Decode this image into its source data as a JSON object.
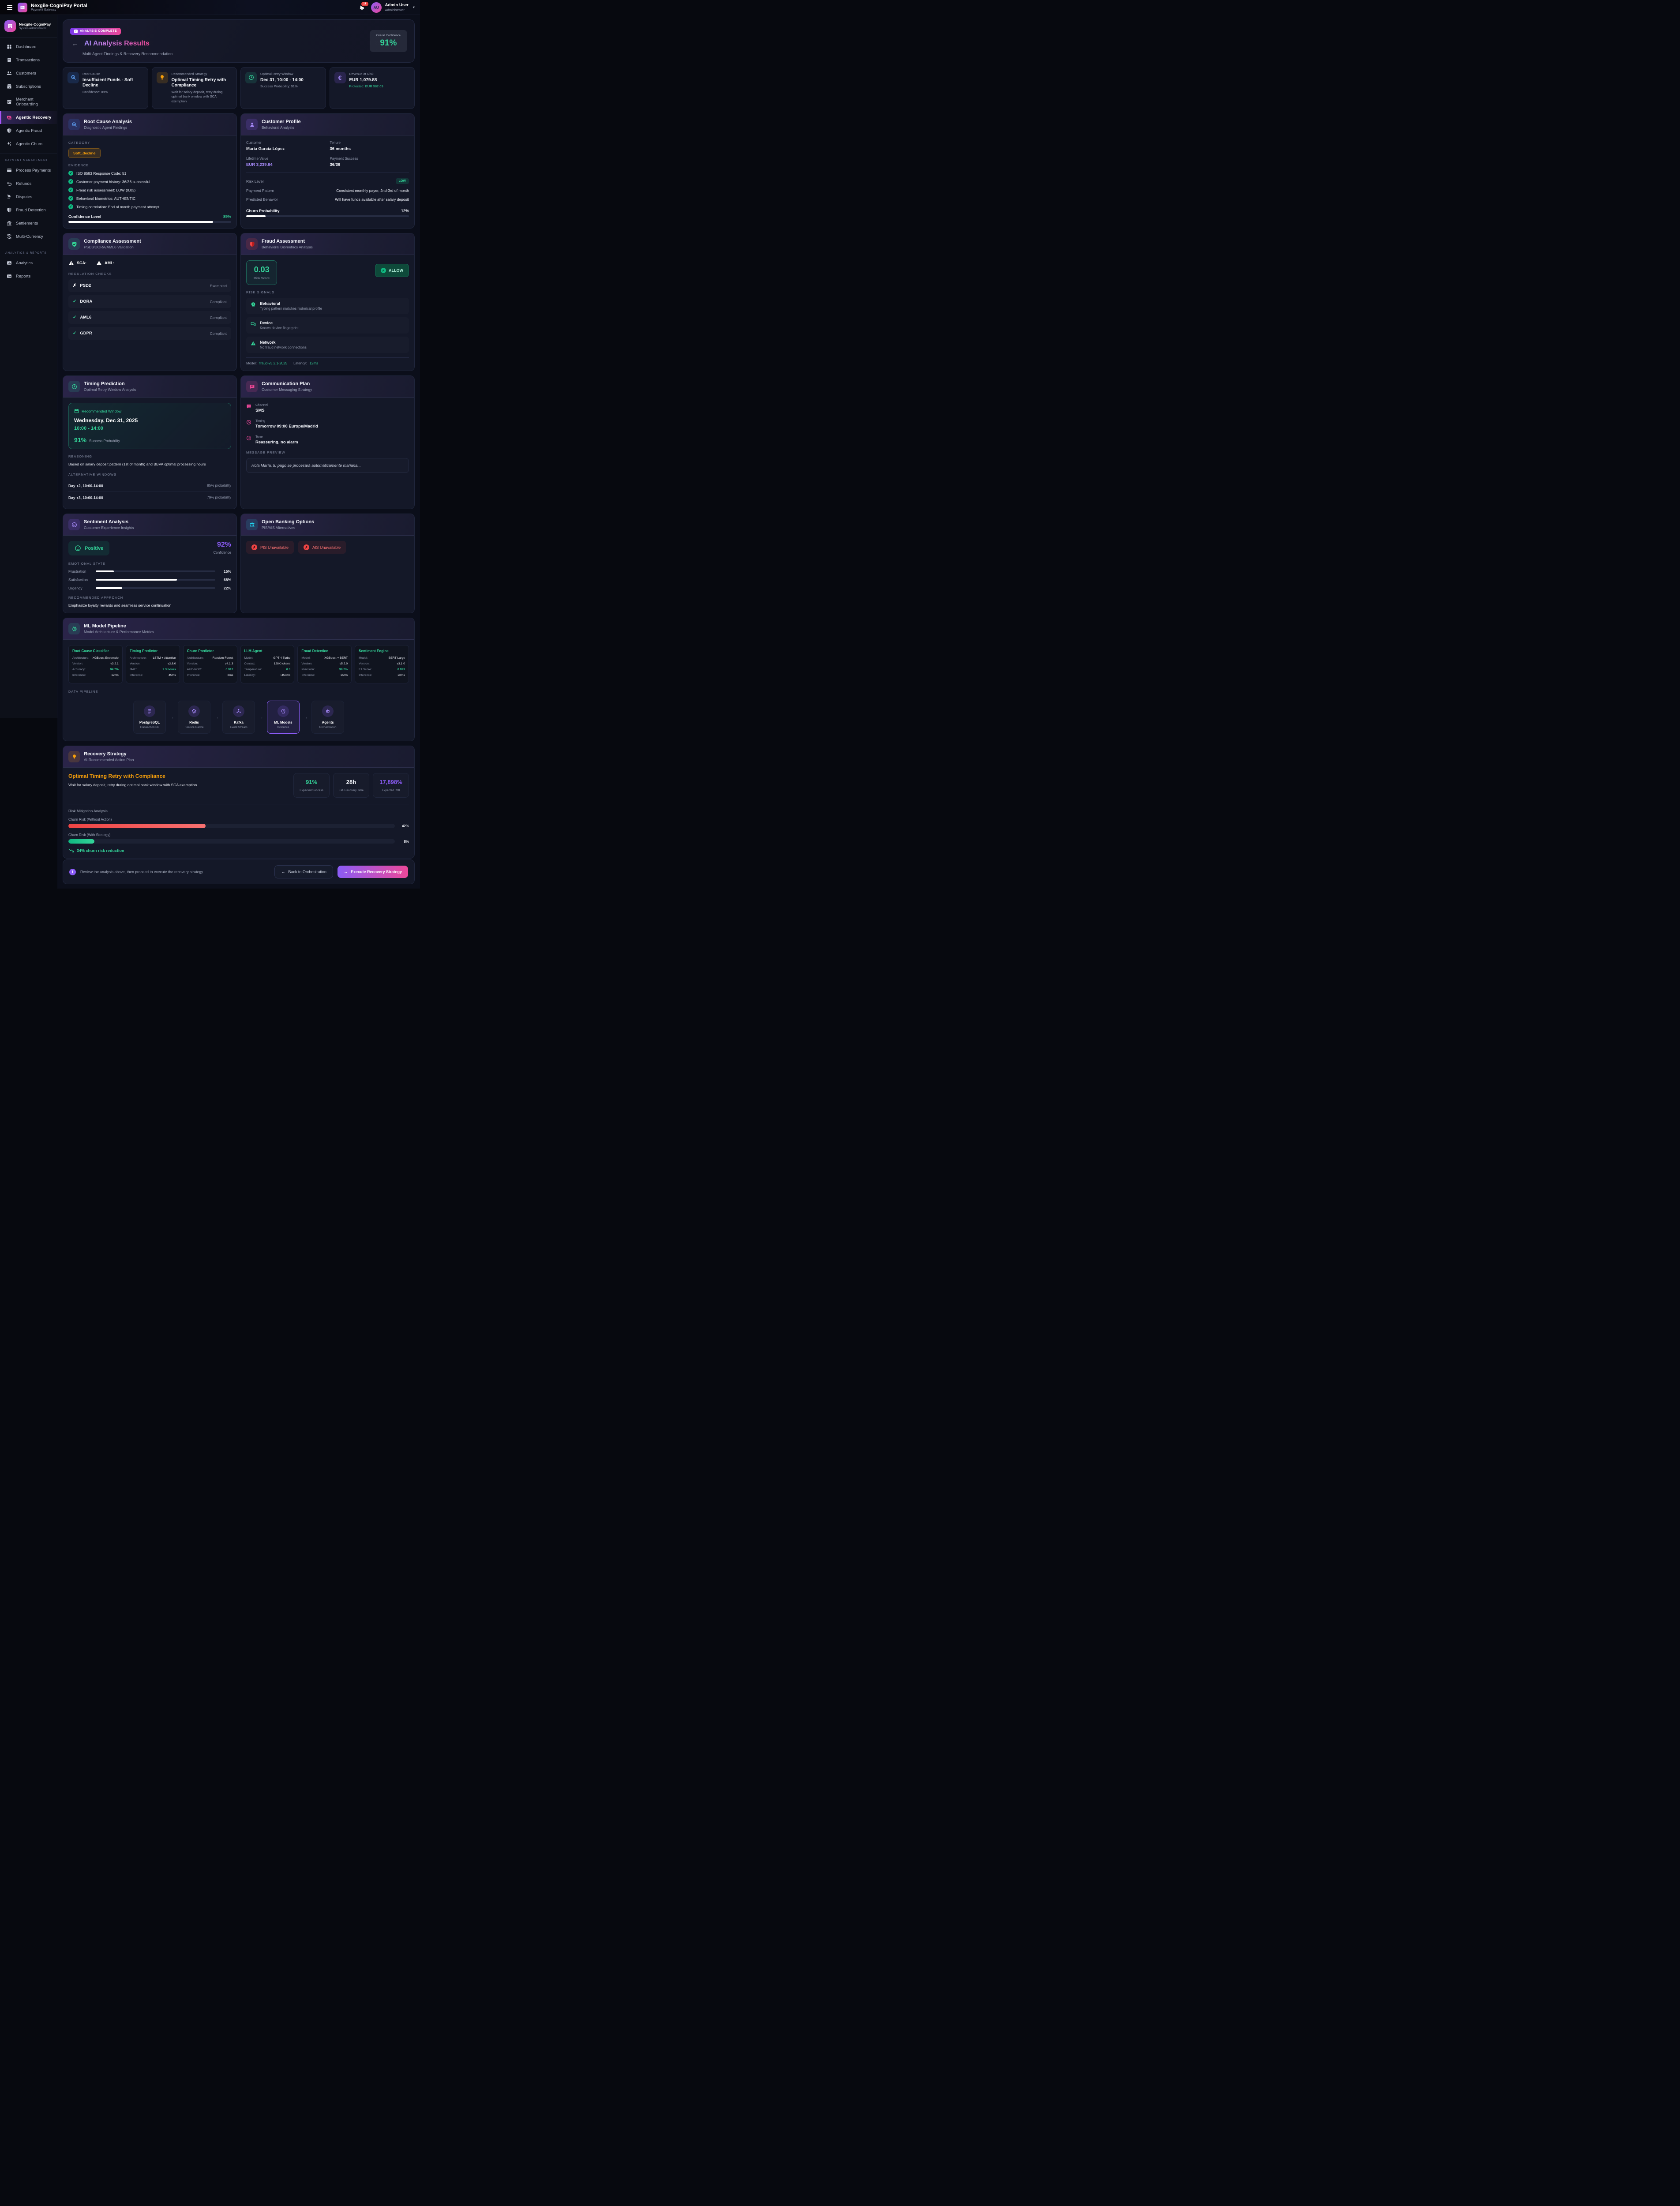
{
  "colors": {
    "accent_purple": "#8b5cf6",
    "accent_pink": "#ec4899",
    "success_green": "#34d399",
    "warning_amber": "#f59e0b",
    "danger_red": "#f87171",
    "info_blue": "#60a5fa",
    "cyan": "#22d3ee"
  },
  "app": {
    "title": "Nexgile-CogniPay Portal",
    "subtitle": "Payment Gateway",
    "notifications_count": "11",
    "user_initials": "AU",
    "user_name": "Admin User",
    "user_role": "Administrator",
    "caret": "▾"
  },
  "sidebar": {
    "brand_name": "Nexgile-CogniPay",
    "brand_role": "System Administrator",
    "main_items": [
      {
        "label": "Dashboard"
      },
      {
        "label": "Transactions"
      },
      {
        "label": "Customers"
      },
      {
        "label": "Subscriptions"
      },
      {
        "label": "Merchant Onboarding"
      },
      {
        "label": "Agentic Recovery"
      },
      {
        "label": "Agentic Fraud"
      },
      {
        "label": "Agentic Churn"
      }
    ],
    "sections": [
      {
        "title": "PAYMENT MANAGEMENT",
        "items": [
          "Process Payments",
          "Refunds",
          "Disputes",
          "Fraud Detection",
          "Settlements",
          "Multi-Currency"
        ]
      },
      {
        "title": "ANALYTICS & REPORTS",
        "items": [
          "Analytics",
          "Reports"
        ]
      }
    ]
  },
  "hero": {
    "badge": "ANALYSIS COMPLETE",
    "title": "AI Analysis Results",
    "subtitle": "Multi-Agent Findings & Recovery Recommendation",
    "confidence_label": "Overall Confidence",
    "confidence_value": "91%"
  },
  "summary_cards": [
    {
      "label": "Root Cause",
      "value": "Insufficient Funds - Soft Decline",
      "sub": "Confidence: 89%"
    },
    {
      "label": "Recommended Strategy",
      "value": "Optimal Timing Retry with Compliance",
      "sub": "Wait for salary deposit, retry during optimal bank window with SCA exemption"
    },
    {
      "label": "Optimal Retry Window",
      "value": "Dec 31, 10:00 - 14:00",
      "sub": "Success Probability: 91%"
    },
    {
      "label": "Revenue at Risk",
      "value": "EUR 1,079.88",
      "sub": "Protected: EUR 982.69"
    }
  ],
  "root_cause": {
    "title": "Root Cause Analysis",
    "subtitle": "Diagnostic Agent Findings",
    "category_label": "CATEGORY",
    "category": "Soft_decline",
    "evidence_label": "EVIDENCE",
    "evidence": [
      "ISO 8583 Response Code: 51",
      "Customer payment history: 36/36 successful",
      "Fraud risk assessment: LOW (0.03)",
      "Behavioral biometrics: AUTHENTIC",
      "Timing correlation: End of month payment attempt"
    ],
    "confidence_label": "Confidence Level",
    "confidence": "89%",
    "confidence_pct": 89
  },
  "customer_profile": {
    "title": "Customer Profile",
    "subtitle": "Behavioral Analysis",
    "fields": [
      {
        "label": "Customer",
        "value": "María García López"
      },
      {
        "label": "Tenure",
        "value": "36 months"
      },
      {
        "label": "Lifetime Value",
        "value": "EUR 3,239.64"
      },
      {
        "label": "Payment Success",
        "value": "36/36"
      }
    ],
    "risk_level_label": "Risk Level",
    "risk_level": "LOW",
    "payment_pattern_label": "Payment Pattern",
    "payment_pattern": "Consistent monthly payer, 2nd-3rd of month",
    "predicted_behavior_label": "Predicted Behavior",
    "predicted_behavior": "Will have funds available after salary deposit",
    "churn_label": "Churn Probability",
    "churn": "12%",
    "churn_pct": 12
  },
  "compliance": {
    "title": "Compliance Assessment",
    "subtitle": "PSD3/DORA/AML6 Validation",
    "sca_label": "SCA:",
    "aml_label": "AML:",
    "checks_label": "REGULATION CHECKS",
    "checks": [
      {
        "name": "PSD2",
        "status": "Exempted"
      },
      {
        "name": "DORA",
        "status": "Compliant"
      },
      {
        "name": "AML6",
        "status": "Compliant"
      },
      {
        "name": "GDPR",
        "status": "Compliant"
      }
    ]
  },
  "fraud": {
    "title": "Fraud Assessment",
    "subtitle": "Behavioral Biometrics Analysis",
    "risk_score": "0.03",
    "risk_score_label": "Risk Score",
    "decision": "ALLOW",
    "signals_label": "RISK SIGNALS",
    "signals": [
      {
        "name": "Behavioral",
        "desc": "Typing pattern matches historical profile"
      },
      {
        "name": "Device",
        "desc": "Known device fingerprint"
      },
      {
        "name": "Network",
        "desc": "No fraud network connections"
      }
    ],
    "model_label": "Model:",
    "model": "fraud-v3.2.1-2025",
    "latency_label": "Latency:",
    "latency": "12ms"
  },
  "timing": {
    "title": "Timing Prediction",
    "subtitle": "Optimal Retry Window Analysis",
    "window_label": "Recommended Window",
    "window_date": "Wednesday, Dec 31, 2025",
    "window_time": "10:00 - 14:00",
    "probability": "91%",
    "probability_label": "Success Probability",
    "reasoning_label": "REASONING",
    "reasoning": "Based on salary deposit pattern (1st of month) and BBVA optimal processing hours",
    "alternatives_label": "ALTERNATIVE WINDOWS",
    "alternatives": [
      {
        "window": "Day +2, 10:00-14:00",
        "probability": "85% probability"
      },
      {
        "window": "Day +3, 10:00-14:00",
        "probability": "79% probability"
      }
    ]
  },
  "communication": {
    "title": "Communication Plan",
    "subtitle": "Customer Messaging Strategy",
    "items": [
      {
        "label": "Channel",
        "value": "SMS"
      },
      {
        "label": "Timing",
        "value": "Tomorrow 09:00 Europe/Madrid"
      },
      {
        "label": "Tone",
        "value": "Reassuring, no alarm"
      }
    ],
    "preview_label": "MESSAGE PREVIEW",
    "preview": "Hola María, tu pago se procesará automáticamente mañana..."
  },
  "sentiment": {
    "title": "Sentiment Analysis",
    "subtitle": "Customer Experience Insights",
    "mood": "Positive",
    "confidence": "92%",
    "confidence_label": "Confidence",
    "state_label": "EMOTIONAL STATE",
    "emotions": [
      {
        "name": "Frustration",
        "value": "15%",
        "pct": 15
      },
      {
        "name": "Satisfaction",
        "value": "68%",
        "pct": 68
      },
      {
        "name": "Urgency",
        "value": "22%",
        "pct": 22
      }
    ],
    "approach_label": "RECOMMENDED APPROACH",
    "approach": "Emphasize loyalty rewards and seamless service continuation"
  },
  "open_banking": {
    "title": "Open Banking Options",
    "subtitle": "PIS/AIS Alternatives",
    "badges": [
      "PIS Unavailable",
      "AIS Unavailable"
    ]
  },
  "ml_pipeline": {
    "title": "ML Model Pipeline",
    "subtitle": "Model Architecture & Performance Metrics",
    "models": [
      {
        "name": "Root Cause Classifier",
        "metrics": [
          {
            "label": "Architecture:",
            "value": "XGBoost Ensemble"
          },
          {
            "label": "Version:",
            "value": "v3.2.1"
          },
          {
            "label": "Accuracy:",
            "value": "94.7%"
          },
          {
            "label": "Inference:",
            "value": "12ms"
          }
        ]
      },
      {
        "name": "Timing Predictor",
        "metrics": [
          {
            "label": "Architecture:",
            "value": "LSTM + Attention"
          },
          {
            "label": "Version:",
            "value": "v2.8.0"
          },
          {
            "label": "MAE:",
            "value": "2.3 hours"
          },
          {
            "label": "Inference:",
            "value": "45ms"
          }
        ]
      },
      {
        "name": "Churn Predictor",
        "metrics": [
          {
            "label": "Architecture:",
            "value": "Random Forest"
          },
          {
            "label": "Version:",
            "value": "v4.1.3"
          },
          {
            "label": "AUC-ROC:",
            "value": "0.912"
          },
          {
            "label": "Inference:",
            "value": "8ms"
          }
        ]
      },
      {
        "name": "LLM Agent",
        "metrics": [
          {
            "label": "Model:",
            "value": "GPT-4 Turbo"
          },
          {
            "label": "Context:",
            "value": "128K tokens"
          },
          {
            "label": "Temperature:",
            "value": "0.3"
          },
          {
            "label": "Latency:",
            "value": "~450ms"
          }
        ]
      },
      {
        "name": "Fraud Detection",
        "metrics": [
          {
            "label": "Model:",
            "value": "XGBoost + BERT"
          },
          {
            "label": "Version:",
            "value": "v5.2.0"
          },
          {
            "label": "Precision:",
            "value": "98.2%"
          },
          {
            "label": "Inference:",
            "value": "15ms"
          }
        ]
      },
      {
        "name": "Sentiment Engine",
        "metrics": [
          {
            "label": "Model:",
            "value": "BERT-Large"
          },
          {
            "label": "Version:",
            "value": "v3.1.0"
          },
          {
            "label": "F1 Score:",
            "value": "0.923"
          },
          {
            "label": "Inference:",
            "value": "28ms"
          }
        ]
      }
    ],
    "pipeline_label": "DATA PIPELINE",
    "nodes": [
      {
        "name": "PostgreSQL",
        "desc": "Transaction DB"
      },
      {
        "name": "Redis",
        "desc": "Feature Cache"
      },
      {
        "name": "Kafka",
        "desc": "Event Stream"
      },
      {
        "name": "ML Models",
        "desc": "Inference"
      },
      {
        "name": "Agents",
        "desc": "Orchestration"
      }
    ]
  },
  "recovery": {
    "title": "Recovery Strategy",
    "subtitle": "AI-Recommended Action Plan",
    "strategy_title": "Optimal Timing Retry with Compliance",
    "strategy_desc": "Wait for salary deposit, retry during optimal bank window with SCA exemption",
    "stats": [
      {
        "value": "91%",
        "label": "Expected Success"
      },
      {
        "value": "28h",
        "label": "Est. Recovery Time"
      },
      {
        "value": "17,898%",
        "label": "Expected ROI"
      }
    ],
    "risk_label": "Risk Mitigation Analysis",
    "risk_without_label": "Churn Risk (Without Action)",
    "risk_without": "42%",
    "risk_without_pct": 42,
    "risk_with_label": "Churn Risk (With Strategy)",
    "risk_with": "8%",
    "risk_with_pct": 8,
    "reduction": "34% churn risk reduction"
  },
  "footer": {
    "note": "Review the analysis above, then proceed to execute the recovery strategy",
    "back_button": "Back to Orchestration",
    "execute_button": "Execute Recovery Strategy"
  }
}
